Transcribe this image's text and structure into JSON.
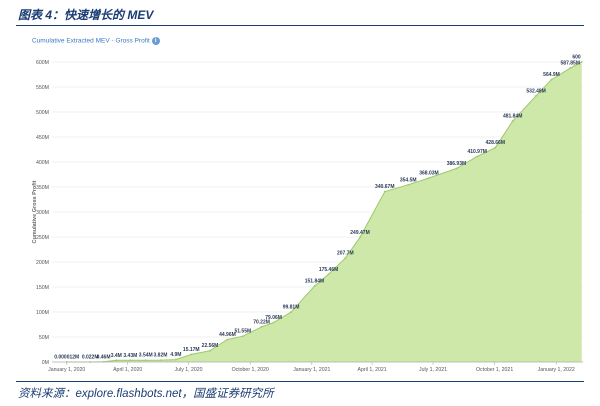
{
  "figure_title": "图表 4：快速增长的 MEV",
  "source_text": "资料来源：explore.flashbots.net，国盛证券研究所",
  "chart_header": "Cumulative Extracted MEV - Gross Profit",
  "info_icon": "info-icon",
  "colors": {
    "area_fill": "#cde8a8",
    "line": "#9cc96a",
    "grid": "#e6e6e6",
    "title": "#1b3c73",
    "header": "#3a78c2"
  },
  "chart_data": {
    "type": "area",
    "title": "Cumulative Extracted MEV - Gross Profit",
    "xlabel": "",
    "ylabel": "Cumulative Gross Profit",
    "ylim": [
      0,
      600
    ],
    "y_unit": "M",
    "y_ticks": [
      "0M",
      "50M",
      "100M",
      "150M",
      "200M",
      "250M",
      "300M",
      "350M",
      "400M",
      "450M",
      "500M",
      "550M",
      "600M"
    ],
    "x_ticks": [
      "January 1, 2020",
      "April 1, 2020",
      "July 1, 2020",
      "October 1, 2020",
      "January 1, 2021",
      "April 1, 2021",
      "July 1, 2021",
      "October 1, 2021",
      "January 1, 2022"
    ],
    "grid": true,
    "legend": "none",
    "series": [
      {
        "points": [
          {
            "x": "2020-01-01",
            "y": 1.2e-05,
            "label": "0.000012M"
          },
          {
            "x": "2020-02-05",
            "y": 0.022,
            "label": "0.022M"
          },
          {
            "x": "2020-02-25",
            "y": 0.46,
            "label": "0.46M"
          },
          {
            "x": "2020-03-15",
            "y": 3.4,
            "label": "3.4M"
          },
          {
            "x": "2020-04-05",
            "y": 3.43,
            "label": "3.43M"
          },
          {
            "x": "2020-04-28",
            "y": 3.54,
            "label": "3.54M"
          },
          {
            "x": "2020-05-20",
            "y": 3.82,
            "label": "3.82M"
          },
          {
            "x": "2020-06-12",
            "y": 4.9,
            "label": "4.9M"
          },
          {
            "x": "2020-07-05",
            "y": 15.17,
            "label": "15.17M"
          },
          {
            "x": "2020-08-02",
            "y": 22.56,
            "label": "22.56M"
          },
          {
            "x": "2020-08-28",
            "y": 44.96,
            "label": "44.96M"
          },
          {
            "x": "2020-09-20",
            "y": 51.55,
            "label": "51.55M"
          },
          {
            "x": "2020-10-18",
            "y": 70.22,
            "label": "70.22M"
          },
          {
            "x": "2020-11-05",
            "y": 79.06,
            "label": "79.06M"
          },
          {
            "x": "2020-12-01",
            "y": 99.81,
            "label": "99.81M"
          },
          {
            "x": "2021-01-05",
            "y": 151.84,
            "label": "151.84M"
          },
          {
            "x": "2021-01-26",
            "y": 175.46,
            "label": "175.46M"
          },
          {
            "x": "2021-02-20",
            "y": 207.7,
            "label": "207.7M"
          },
          {
            "x": "2021-03-14",
            "y": 249.47,
            "label": "249.47M"
          },
          {
            "x": "2021-04-20",
            "y": 340.67,
            "label": "340.67M"
          },
          {
            "x": "2021-05-25",
            "y": 354.5,
            "label": "354.5M"
          },
          {
            "x": "2021-06-25",
            "y": 368.03,
            "label": "368.03M"
          },
          {
            "x": "2021-08-05",
            "y": 386.93,
            "label": "386.93M"
          },
          {
            "x": "2021-09-05",
            "y": 410.97,
            "label": "410.97M"
          },
          {
            "x": "2021-10-02",
            "y": 428.66,
            "label": "428.66M"
          },
          {
            "x": "2021-10-28",
            "y": 481.84,
            "label": "481.84M"
          },
          {
            "x": "2021-12-02",
            "y": 532.48,
            "label": "532.48M"
          },
          {
            "x": "2021-12-25",
            "y": 564.9,
            "label": "564.9M"
          },
          {
            "x": "2022-01-22",
            "y": 587.85,
            "label": "587.85M"
          },
          {
            "x": "2022-02-08",
            "y": 600,
            "label": "600"
          }
        ]
      }
    ]
  }
}
